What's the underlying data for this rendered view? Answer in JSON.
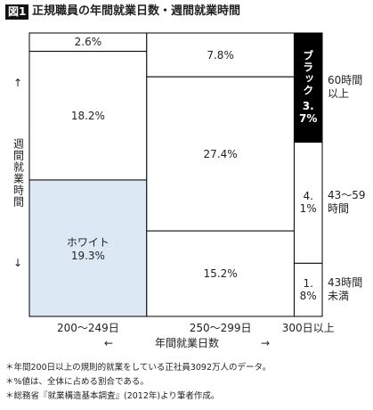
{
  "chart_data": {
    "type": "mosaic",
    "figure_label": "図1",
    "title": "正規職員の年間就業日数・週間就業時間",
    "x_label": "年間就業日数",
    "y_label": "週間就業時間",
    "categories": [
      "200〜249日",
      "250〜299日",
      "300日以上"
    ],
    "series": [
      {
        "name": "60時間\n以上",
        "values": [
          2.6,
          7.8,
          3.7
        ],
        "value_labels": [
          "2.6%",
          "7.8%",
          "3.7%"
        ],
        "colors": [
          "#ffffff",
          "#ffffff",
          "#000000"
        ]
      },
      {
        "name": "43〜59\n時間",
        "values": [
          18.2,
          27.4,
          4.1
        ],
        "value_labels": [
          "18.2%",
          "27.4%",
          "4.1%"
        ],
        "colors": [
          "#ffffff",
          "#ffffff",
          "#ffffff"
        ]
      },
      {
        "name": "43時間\n未満",
        "values": [
          19.3,
          15.2,
          1.8
        ],
        "value_labels": [
          "19.3%",
          "15.2%",
          "1.8%"
        ],
        "colors": [
          "#dce9f5",
          "#ffffff",
          "#ffffff"
        ]
      }
    ],
    "annotations": [
      {
        "text": "ホワイト",
        "series": 2,
        "category": 0
      },
      {
        "text": "ブラック",
        "series": 0,
        "category": 2
      }
    ],
    "notes": [
      "＊年間200日以上の規則的就業をしている正社員3092万人のデータ。",
      "＊%値は、全体に占める割合である。",
      "＊総務省『就業構造基本調査』(2012年)より筆者作成。"
    ]
  }
}
